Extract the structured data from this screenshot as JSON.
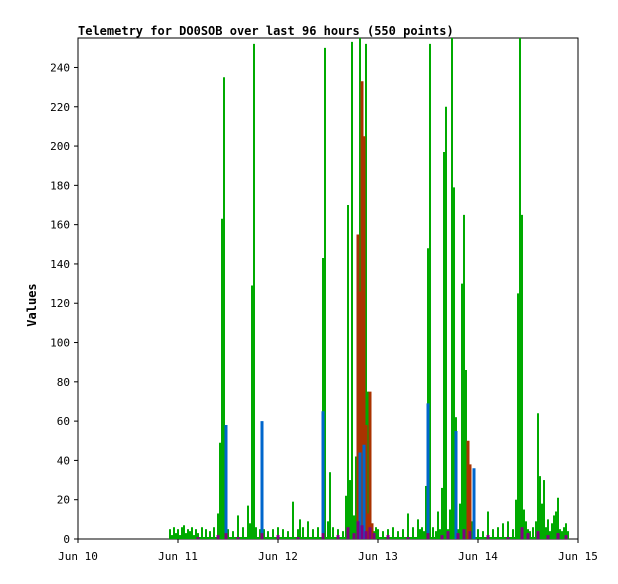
{
  "chart_data": {
    "type": "line",
    "title": "Telemetry for DO0SOB over last 96 hours (550 points)",
    "xlabel": "",
    "ylabel": "Values",
    "ylim": [
      0,
      255
    ],
    "yticks": [
      0,
      20,
      40,
      60,
      80,
      100,
      120,
      140,
      160,
      180,
      200,
      220,
      240
    ],
    "xlim": [
      0,
      5
    ],
    "xtick_labels": [
      "Jun 10",
      "Jun 11",
      "Jun 12",
      "Jun 13",
      "Jun 14",
      "Jun 15"
    ],
    "x_unit": "days since Jun 10 00:00",
    "grid": false,
    "legend": "none",
    "series": [
      {
        "color": "#00aa00",
        "x": [
          0.92,
          0.94,
          0.96,
          0.98,
          1.0,
          1.02,
          1.04,
          1.06,
          1.08,
          1.1,
          1.12,
          1.14,
          1.16,
          1.18,
          1.2,
          1.24,
          1.28,
          1.32,
          1.36,
          1.4,
          1.42,
          1.44,
          1.46,
          1.48,
          1.5,
          1.55,
          1.6,
          1.65,
          1.7,
          1.72,
          1.74,
          1.76,
          1.78,
          1.82,
          1.84,
          1.86,
          1.9,
          1.95,
          2.0,
          2.05,
          2.1,
          2.15,
          2.2,
          2.22,
          2.25,
          2.3,
          2.35,
          2.4,
          2.45,
          2.47,
          2.5,
          2.52,
          2.55,
          2.6,
          2.65,
          2.68,
          2.7,
          2.72,
          2.74,
          2.76,
          2.78,
          2.8,
          2.82,
          2.84,
          2.86,
          2.88,
          2.9,
          2.92,
          2.94,
          2.96,
          2.98,
          3.0,
          3.05,
          3.1,
          3.15,
          3.2,
          3.25,
          3.3,
          3.35,
          3.4,
          3.42,
          3.44,
          3.46,
          3.48,
          3.5,
          3.52,
          3.55,
          3.58,
          3.6,
          3.62,
          3.64,
          3.66,
          3.68,
          3.7,
          3.72,
          3.74,
          3.76,
          3.78,
          3.8,
          3.82,
          3.84,
          3.86,
          3.88,
          3.9,
          3.92,
          3.94,
          3.96,
          4.0,
          4.05,
          4.1,
          4.15,
          4.2,
          4.25,
          4.3,
          4.35,
          4.38,
          4.4,
          4.42,
          4.44,
          4.46,
          4.48,
          4.5,
          4.52,
          4.55,
          4.58,
          4.6,
          4.62,
          4.64,
          4.66,
          4.68,
          4.7,
          4.72,
          4.74,
          4.76,
          4.78,
          4.8,
          4.82,
          4.84,
          4.86,
          4.88,
          4.9
        ],
        "values": [
          5,
          2,
          6,
          3,
          5,
          2,
          6,
          7,
          3,
          5,
          4,
          6,
          2,
          5,
          3,
          6,
          5,
          4,
          6,
          13,
          49,
          163,
          235,
          6,
          5,
          4,
          12,
          6,
          17,
          8,
          129,
          252,
          6,
          5,
          4,
          5,
          4,
          5,
          6,
          5,
          4,
          19,
          5,
          10,
          6,
          9,
          5,
          6,
          143,
          250,
          9,
          34,
          6,
          5,
          4,
          22,
          170,
          30,
          253,
          12,
          42,
          140,
          255,
          230,
          59,
          252,
          75,
          12,
          5,
          4,
          6,
          5,
          4,
          5,
          6,
          4,
          5,
          13,
          6,
          10,
          5,
          6,
          4,
          27,
          148,
          252,
          6,
          4,
          14,
          5,
          26,
          197,
          220,
          5,
          15,
          255,
          179,
          62,
          5,
          18,
          130,
          165,
          86,
          4,
          5,
          9,
          6,
          5,
          4,
          14,
          5,
          6,
          8,
          9,
          5,
          20,
          125,
          255,
          165,
          15,
          9,
          5,
          4,
          6,
          9,
          64,
          32,
          18,
          30,
          6,
          10,
          4,
          8,
          12,
          14,
          21,
          5,
          4,
          6,
          8,
          4
        ]
      },
      {
        "color": "#aa3300",
        "x": [
          2.8,
          2.82,
          2.84,
          2.86,
          2.88,
          2.9,
          2.92,
          2.94,
          3.9,
          3.92
        ],
        "values": [
          155,
          126,
          233,
          205,
          58,
          13,
          75,
          8,
          50,
          38
        ]
      },
      {
        "color": "#0066cc",
        "x": [
          1.48,
          1.84,
          2.45,
          2.82,
          2.86,
          3.5,
          3.78,
          3.96
        ],
        "values": [
          58,
          60,
          65,
          44,
          48,
          69,
          55,
          36
        ]
      },
      {
        "color": "#800080",
        "x": [
          1.2,
          1.4,
          1.48,
          1.6,
          1.84,
          2.0,
          2.2,
          2.45,
          2.6,
          2.7,
          2.76,
          2.8,
          2.84,
          2.88,
          2.92,
          2.96,
          3.1,
          3.3,
          3.5,
          3.64,
          3.7,
          3.8,
          3.86,
          3.92,
          4.1,
          4.3,
          4.44,
          4.5,
          4.6,
          4.7,
          4.8,
          4.88
        ],
        "values": [
          1,
          2,
          3,
          1,
          3,
          2,
          1,
          3,
          2,
          6,
          3,
          9,
          7,
          4,
          6,
          3,
          2,
          1,
          3,
          2,
          4,
          3,
          5,
          4,
          2,
          1,
          6,
          3,
          4,
          2,
          3,
          2
        ]
      }
    ]
  }
}
